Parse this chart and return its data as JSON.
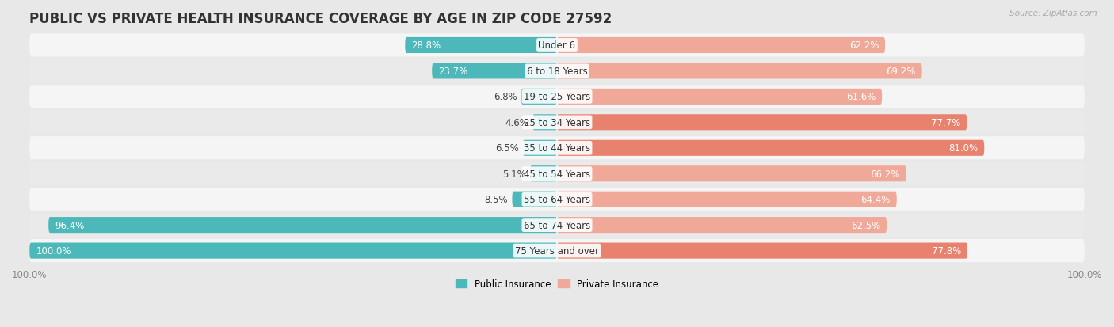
{
  "title": "PUBLIC VS PRIVATE HEALTH INSURANCE COVERAGE BY AGE IN ZIP CODE 27592",
  "source": "Source: ZipAtlas.com",
  "categories": [
    "Under 6",
    "6 to 18 Years",
    "19 to 25 Years",
    "25 to 34 Years",
    "35 to 44 Years",
    "45 to 54 Years",
    "55 to 64 Years",
    "65 to 74 Years",
    "75 Years and over"
  ],
  "public_values": [
    28.8,
    23.7,
    6.8,
    4.6,
    6.5,
    5.1,
    8.5,
    96.4,
    100.0
  ],
  "private_values": [
    62.2,
    69.2,
    61.6,
    77.7,
    81.0,
    66.2,
    64.4,
    62.5,
    77.8
  ],
  "public_color": "#4db8ba",
  "private_color": "#e8816d",
  "private_color_light": "#f0a898",
  "public_label": "Public Insurance",
  "private_label": "Private Insurance",
  "background_color": "#e8e8e8",
  "row_colors": [
    "#f5f5f5",
    "#eaeaea"
  ],
  "title_fontsize": 12,
  "label_fontsize": 8.5,
  "tick_fontsize": 8.5,
  "annotation_fontsize": 7.5
}
